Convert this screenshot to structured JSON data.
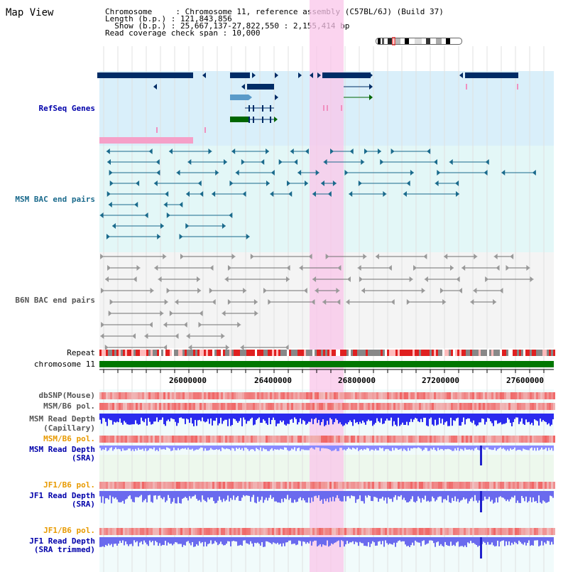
{
  "title": "Map View",
  "info": {
    "chromosome_line": "Chromosome     : Chromosome 11, reference assembly (C57BL/6J) (Build 37)",
    "length_line": "Length (b.p.) : 121,843,856",
    "show_line": "  Show (b.p.) : 25,667,137-27,822,550 : 2,155,414 bp",
    "coverage_line": "Read coverage check span : 10,000"
  },
  "tracks": {
    "refseq": "RefSeq Genes",
    "msm_bac": "MSM BAC end pairs",
    "b6n_bac": "B6N BAC end pairs",
    "repeat": "Repeat",
    "chromosome": "chromosome 11",
    "dbsnp": "dbSNP(Mouse)",
    "msm_pol": "MSM/B6 pol.",
    "msm_depth_cap_1": "MSM Read Depth",
    "msm_depth_cap_2": "(Capillary)",
    "msm_pol_2": "MSM/B6 pol.",
    "msm_depth_sra_1": "MSM Read Depth",
    "msm_depth_sra_2": "(SRA)",
    "jf1_pol": "JF1/B6 pol.",
    "jf1_depth_sra_1": "JF1 Read Depth",
    "jf1_depth_sra_2": "(SRA)",
    "jf1_pol_2": "JF1/B6 pol.",
    "jf1_depth_trim_1": "JF1 Read Depth",
    "jf1_depth_trim_2": "(SRA trimmed)"
  },
  "axis": {
    "ticks": [
      "26000000",
      "26400000",
      "26800000",
      "27200000",
      "27600000"
    ]
  },
  "colors": {
    "refseq_bg": "#d9effa",
    "bac_bg": "#e3f7f7",
    "b6n_bg": "#f4f4f4",
    "highlight": "#f9c6ea",
    "gene_dark": "#002c66",
    "gene_mid": "#5a9ac9",
    "gene_green": "#006600",
    "msm_line": "#1a6a8c",
    "b6n_line": "#707070",
    "chrom_green": "#007700",
    "depth_blue": "#2b2bee",
    "depth_light": "#8a8aff",
    "track_label_gray": "#555555",
    "track_label_blue": "#0000aa",
    "track_label_orange": "#e89a00"
  }
}
